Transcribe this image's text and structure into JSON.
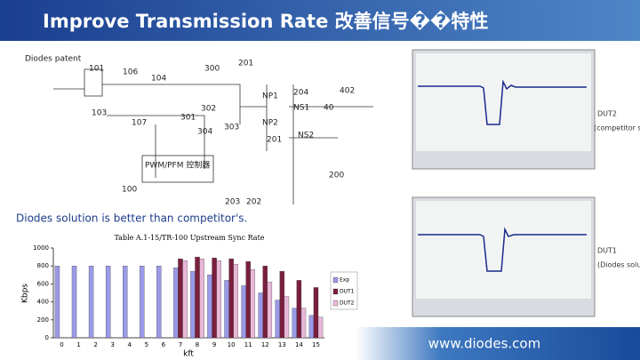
{
  "header": {
    "title": "Improve  Transmission Rate 改善信号��特性"
  },
  "diagram": {
    "title": "Diodes patent",
    "labels": [
      "101",
      "106",
      "104",
      "300",
      "201",
      "402",
      "204",
      "NP1",
      "NS1",
      "40",
      "103",
      "107",
      "301",
      "302",
      "304",
      "303",
      "NP2",
      "NS2",
      "201",
      "PWM/PFM 控制器",
      "200",
      "100",
      "203",
      "202"
    ]
  },
  "caption": "Diodes solution is better than competitor's.",
  "chart_data": {
    "type": "bar",
    "title": "Table A.1-15/TR-100 Upstream Sync Rate",
    "y_label": "Kbps",
    "x_label": "kft",
    "categories": [
      "0",
      "1",
      "2",
      "3",
      "4",
      "5",
      "6",
      "7",
      "8",
      "9",
      "10",
      "11",
      "12",
      "13",
      "14",
      "15"
    ],
    "series": [
      {
        "name": "Exp",
        "color": "#9a9ae8",
        "values": [
          800,
          800,
          800,
          800,
          800,
          800,
          800,
          780,
          740,
          700,
          640,
          580,
          500,
          420,
          330,
          250
        ]
      },
      {
        "name": "DUT1",
        "color": "#7a1f3d",
        "values": [
          null,
          null,
          null,
          null,
          null,
          null,
          null,
          880,
          900,
          890,
          880,
          850,
          800,
          740,
          640,
          560
        ]
      },
      {
        "name": "DUT2",
        "color": "#e8b8d8",
        "values": [
          null,
          null,
          null,
          null,
          null,
          null,
          null,
          860,
          880,
          860,
          820,
          760,
          620,
          460,
          330,
          230
        ]
      }
    ],
    "ylim": [
      0,
      1000
    ],
    "yticks": [
      0,
      200,
      400,
      600,
      800,
      1000
    ]
  },
  "scopes": [
    {
      "name": "DUT2",
      "note": "(competitor solution)"
    },
    {
      "name": "DUT1",
      "note": "(Diodes solution)"
    }
  ],
  "footer": {
    "url": "www.diodes.com"
  }
}
